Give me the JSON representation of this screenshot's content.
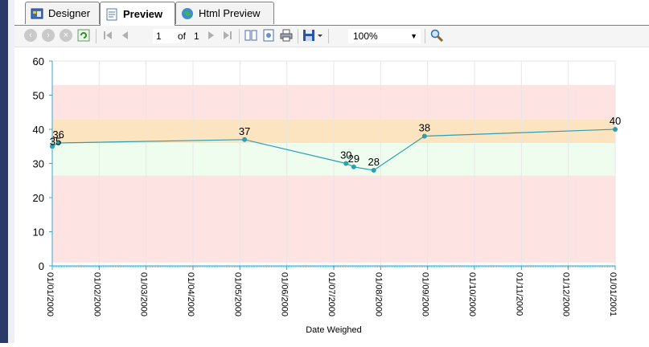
{
  "tabs": [
    {
      "label": "Designer",
      "icon": "designer-icon"
    },
    {
      "label": "Preview",
      "icon": "preview-icon",
      "active": true
    },
    {
      "label": "Html Preview",
      "icon": "globe-icon"
    }
  ],
  "toolbar": {
    "page_current": "1",
    "of_label": "of",
    "page_total": "1",
    "zoom": "100%"
  },
  "chart_data": {
    "type": "line",
    "xlabel": "Date Weighed",
    "ylim": [
      0,
      60
    ],
    "yticks": [
      0,
      10,
      20,
      30,
      40,
      50,
      60
    ],
    "xticks": [
      "01/01/2000",
      "01/02/2000",
      "01/03/2000",
      "01/04/2000",
      "01/05/2000",
      "01/06/2000",
      "01/07/2000",
      "01/08/2000",
      "01/09/2000",
      "01/10/2000",
      "01/11/2000",
      "01/12/2000",
      "01/01/2001"
    ],
    "series": [
      {
        "points": [
          {
            "x": "2000-01-01",
            "y": 35,
            "label": "35"
          },
          {
            "x": "2000-01-05",
            "y": 36,
            "label": "36"
          },
          {
            "x": "2000-05-05",
            "y": 37,
            "label": "37"
          },
          {
            "x": "2000-07-10",
            "y": 30,
            "label": "30"
          },
          {
            "x": "2000-07-15",
            "y": 29,
            "label": "29"
          },
          {
            "x": "2000-07-28",
            "y": 28,
            "label": "28"
          },
          {
            "x": "2000-08-30",
            "y": 38,
            "label": "38"
          },
          {
            "x": "2001-01-01",
            "y": 40,
            "label": "40"
          }
        ]
      }
    ],
    "bands": [
      {
        "from": 1,
        "to": 26.5,
        "color": "#fde3e1"
      },
      {
        "from": 26.5,
        "to": 36,
        "color": "#eefdee"
      },
      {
        "from": 36,
        "to": 43,
        "color": "#fde4c0"
      },
      {
        "from": 43,
        "to": 53,
        "color": "#fde3e1"
      }
    ],
    "line_color": "#2aa0b0",
    "grid": true
  }
}
